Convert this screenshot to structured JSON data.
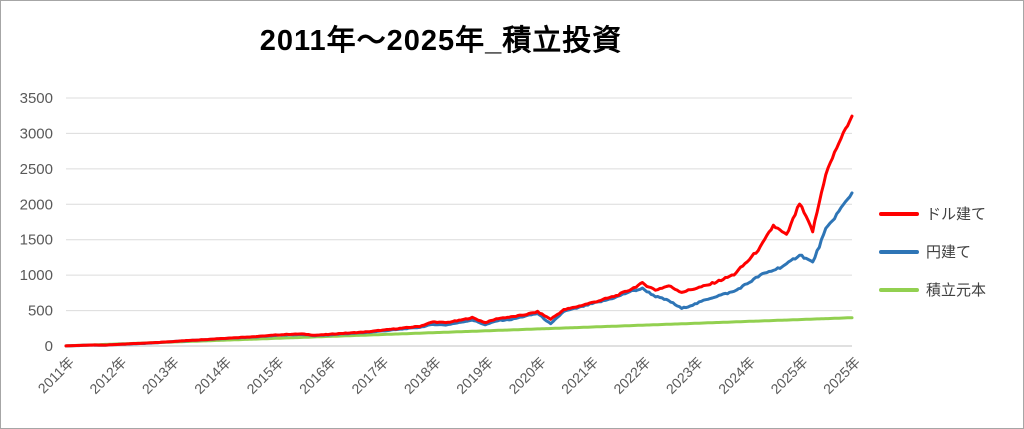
{
  "chart": {
    "title": "2011年～2025年_積立投資",
    "colors": {
      "grid": "#dcdcdc",
      "axis": "#c0c0c0",
      "tick_text": "#595959",
      "legend_text": "#404040",
      "border": "#a6a6a6",
      "background": "#ffffff"
    }
  },
  "chart_data": {
    "type": "line",
    "title": "2011年～2025年_積立投資",
    "x_tick_labels": [
      "2011年",
      "2012年",
      "2013年",
      "2014年",
      "2015年",
      "2016年",
      "2017年",
      "2018年",
      "2019年",
      "2020年",
      "2021年",
      "2022年",
      "2023年",
      "2024年",
      "2025年",
      "2025年"
    ],
    "y_ticks": [
      0,
      500,
      1000,
      1500,
      2000,
      2500,
      3000,
      3500
    ],
    "ylim": [
      0,
      3500
    ],
    "grid": true,
    "legend_position": "right",
    "series": [
      {
        "name": "ドル建て",
        "color": "#ff0000",
        "values": [
          2,
          8,
          14,
          12,
          24,
          33,
          40,
          50,
          62,
          74,
          85,
          96,
          108,
          118,
          128,
          140,
          155,
          165,
          170,
          152,
          163,
          177,
          188,
          200,
          220,
          240,
          258,
          278,
          340,
          330,
          360,
          400,
          330,
          390,
          410,
          440,
          482,
          380,
          510,
          555,
          605,
          655,
          710,
          790,
          885,
          790,
          850,
          760,
          810,
          860,
          930,
          1010,
          1190,
          1390,
          1700,
          1560,
          2010,
          1620,
          2430,
          2870,
          3245
        ]
      },
      {
        "name": "円建て",
        "color": "#2e75b6",
        "values": [
          2,
          7,
          13,
          11,
          22,
          30,
          37,
          47,
          60,
          72,
          82,
          93,
          105,
          114,
          123,
          135,
          150,
          158,
          162,
          146,
          156,
          170,
          180,
          192,
          210,
          228,
          246,
          264,
          305,
          298,
          330,
          368,
          300,
          360,
          375,
          420,
          460,
          310,
          490,
          535,
          590,
          635,
          690,
          765,
          810,
          700,
          640,
          530,
          590,
          665,
          720,
          770,
          880,
          1000,
          1070,
          1150,
          1290,
          1180,
          1640,
          1900,
          2160
        ]
      },
      {
        "name": "積立元本",
        "color": "#92d050",
        "values": [
          2,
          9,
          15,
          22,
          29,
          35,
          42,
          48,
          55,
          62,
          68,
          75,
          82,
          88,
          95,
          101,
          108,
          115,
          121,
          128,
          135,
          141,
          148,
          154,
          161,
          168,
          174,
          181,
          188,
          194,
          201,
          207,
          214,
          221,
          227,
          234,
          241,
          247,
          254,
          260,
          267,
          274,
          280,
          287,
          294,
          300,
          307,
          313,
          320,
          327,
          333,
          340,
          347,
          353,
          360,
          366,
          373,
          380,
          386,
          393,
          400
        ]
      }
    ]
  }
}
